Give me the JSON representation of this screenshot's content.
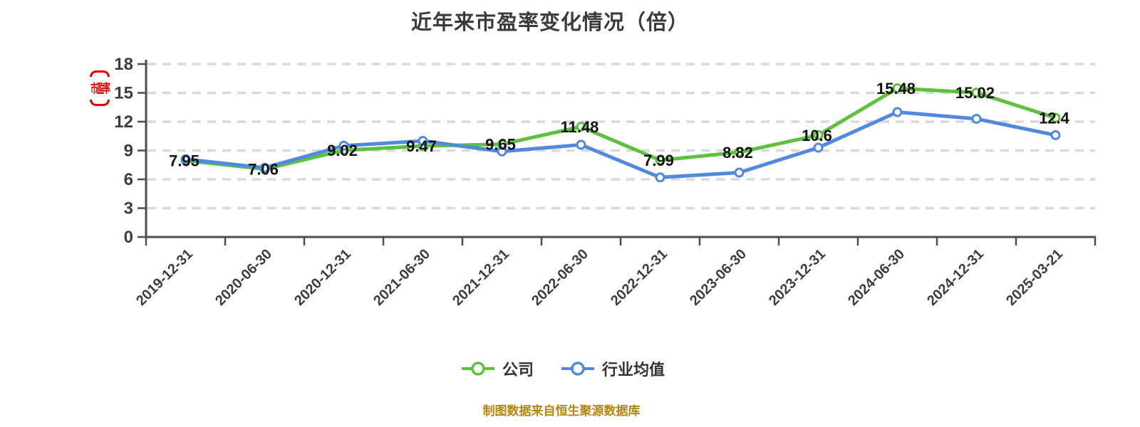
{
  "page": {
    "background": "#ffffff"
  },
  "chart_data": {
    "type": "line",
    "title": "近年来市盈率变化情况（倍）",
    "y_axis_label": "市盈率",
    "y_axis_label_color": "#e60000",
    "source_note": "制图数据来自恒生聚源数据库",
    "categories": [
      "2019-12-31",
      "2020-06-30",
      "2020-12-31",
      "2021-06-30",
      "2021-12-31",
      "2022-06-30",
      "2022-12-31",
      "2023-06-30",
      "2023-12-31",
      "2024-06-30",
      "2024-12-31",
      "2025-03-21"
    ],
    "series": [
      {
        "name": "公司",
        "color": "#5cc23e",
        "marker": "circle-white-fill",
        "show_labels": true,
        "values": [
          7.95,
          7.06,
          9.02,
          9.47,
          9.65,
          11.48,
          7.99,
          8.82,
          10.6,
          15.48,
          15.02,
          12.4
        ]
      },
      {
        "name": "行业均值",
        "color": "#5289e0",
        "marker": "circle-white-fill",
        "show_labels": false,
        "values": [
          8.1,
          7.2,
          9.5,
          10.0,
          8.9,
          9.6,
          6.2,
          6.7,
          9.3,
          13.0,
          12.3,
          10.6
        ]
      }
    ],
    "ylim": [
      0,
      18
    ],
    "y_ticks": [
      0,
      3,
      6,
      9,
      12,
      15,
      18
    ],
    "grid": {
      "horizontal_dashed": true,
      "color": "#d9d9d9"
    },
    "axis_color": "#4d4d4d",
    "label_color": "#3d3d3d",
    "data_label_color": "#121212",
    "legend_position": "bottom",
    "x_label_rotation": -45
  }
}
